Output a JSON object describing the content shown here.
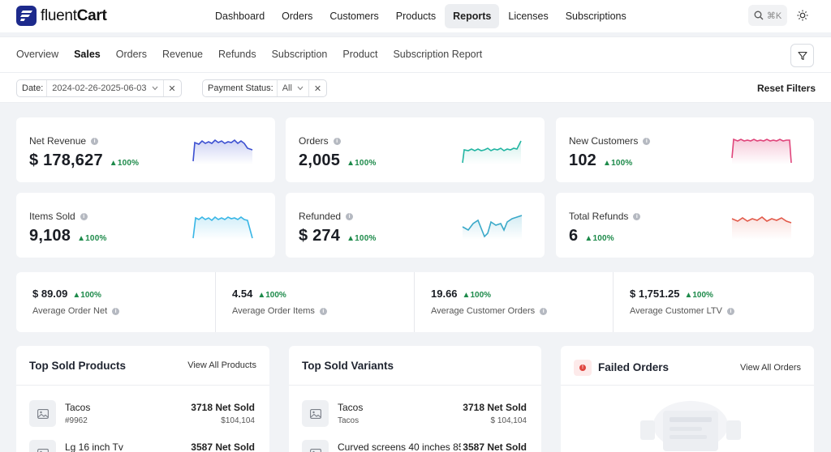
{
  "brand": {
    "prefix": "fluent",
    "suffix": "Cart"
  },
  "main_nav": [
    {
      "label": "Dashboard"
    },
    {
      "label": "Orders"
    },
    {
      "label": "Customers"
    },
    {
      "label": "Products"
    },
    {
      "label": "Reports",
      "active": true
    },
    {
      "label": "Licenses"
    },
    {
      "label": "Subscriptions"
    }
  ],
  "search": {
    "shortcut": "⌘K"
  },
  "sub_nav": [
    {
      "label": "Overview"
    },
    {
      "label": "Sales",
      "active": true
    },
    {
      "label": "Orders"
    },
    {
      "label": "Revenue"
    },
    {
      "label": "Refunds"
    },
    {
      "label": "Subscription"
    },
    {
      "label": "Product"
    },
    {
      "label": "Subscription Report"
    }
  ],
  "filters": {
    "date_label": "Date:",
    "date_value": "2024-02-26-2025-06-03",
    "status_label": "Payment Status:",
    "status_value": "All",
    "reset": "Reset Filters"
  },
  "stats": [
    {
      "label": "Net Revenue",
      "value": "$ 178,627",
      "delta": "100%",
      "color": "#3b4fd1"
    },
    {
      "label": "Orders",
      "value": "2,005",
      "delta": "100%",
      "color": "#22b5a2"
    },
    {
      "label": "New Customers",
      "value": "102",
      "delta": "100%",
      "color": "#e0457b"
    },
    {
      "label": "Items Sold",
      "value": "9,108",
      "delta": "100%",
      "color": "#38b6e6"
    },
    {
      "label": "Refunded",
      "value": "$ 274",
      "delta": "100%",
      "color": "#3aa9c9"
    },
    {
      "label": "Total Refunds",
      "value": "6",
      "delta": "100%",
      "color": "#e25a4a"
    }
  ],
  "averages": [
    {
      "value": "$ 89.09",
      "delta": "100%",
      "label": "Average Order Net"
    },
    {
      "value": "4.54",
      "delta": "100%",
      "label": "Average Order Items"
    },
    {
      "value": "19.66",
      "delta": "100%",
      "label": "Average Customer Orders"
    },
    {
      "value": "$ 1,751.25",
      "delta": "100%",
      "label": "Average Customer LTV"
    }
  ],
  "top_products": {
    "title": "Top Sold Products",
    "link": "View All Products",
    "rows": [
      {
        "name": "Tacos",
        "sub": "#9962",
        "net": "3718 Net Sold",
        "amount": "$104,104"
      },
      {
        "name": "Lg 16 inch Tv",
        "sub": "",
        "net": "3587 Net Sold",
        "amount": ""
      }
    ]
  },
  "top_variants": {
    "title": "Top Sold Variants",
    "rows": [
      {
        "name": "Tacos",
        "sub": "Tacos",
        "net": "3718 Net Sold",
        "amount": "$ 104,104"
      },
      {
        "name": "Curved screens 40 inches 85",
        "sub": "",
        "net": "3587 Net Sold",
        "amount": ""
      }
    ]
  },
  "failed_orders": {
    "title": "Failed Orders",
    "link": "View All Orders"
  },
  "colors": {
    "brand": "#1d2a8c",
    "positive": "#1d8a4a",
    "alert": "#e0453f"
  }
}
